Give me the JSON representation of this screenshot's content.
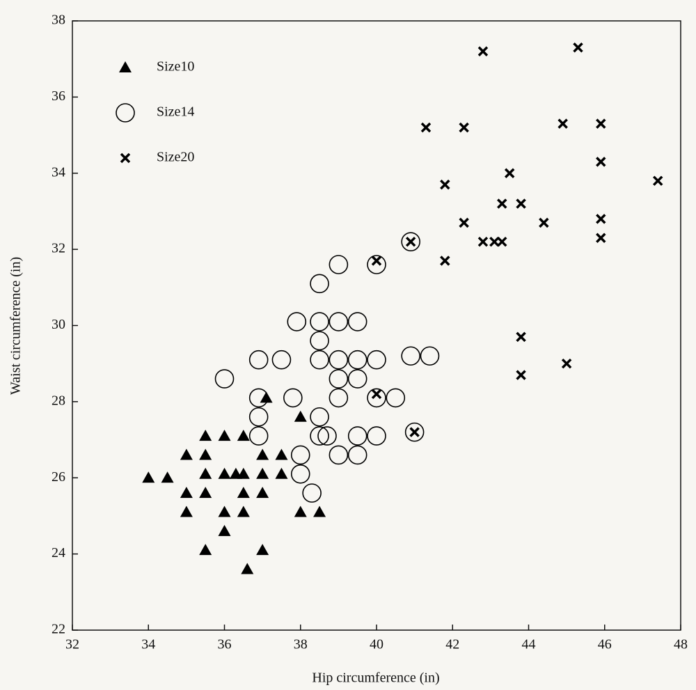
{
  "chart_data": {
    "type": "scatter",
    "xlabel": "Hip circumference (in)",
    "ylabel": "Waist circumference (in)",
    "xlim": [
      32,
      48
    ],
    "ylim": [
      22,
      38
    ],
    "xticks": [
      32,
      34,
      36,
      38,
      40,
      42,
      44,
      46,
      48
    ],
    "yticks": [
      22,
      24,
      26,
      28,
      30,
      32,
      34,
      36,
      38
    ],
    "legend": "upper left",
    "series": [
      {
        "name": "Size10",
        "color": "#000000",
        "marker": "triangle",
        "x": [
          34,
          34.5,
          35,
          35,
          35,
          35.5,
          35.5,
          35.5,
          35.5,
          35.5,
          36,
          36,
          36,
          36,
          36.3,
          36.5,
          36.5,
          36.5,
          36.5,
          36.6,
          37,
          37,
          37,
          37,
          37.1,
          37.5,
          37.5,
          38,
          38,
          38.5
        ],
        "y": [
          26,
          26,
          26.6,
          25.6,
          25.1,
          27.1,
          26.6,
          26.1,
          25.6,
          24.1,
          27.1,
          26.1,
          25.1,
          24.6,
          26.1,
          26.1,
          27.1,
          25.6,
          25.1,
          23.6,
          26.6,
          26.1,
          25.6,
          24.1,
          28.1,
          26.6,
          26.1,
          27.6,
          25.1,
          25.1
        ]
      },
      {
        "name": "Size14",
        "color": "#000000",
        "marker": "circle",
        "x": [
          36,
          36.9,
          37.5,
          36.9,
          36.9,
          36.9,
          37.8,
          37.9,
          38.5,
          39,
          39.5,
          38.5,
          38.5,
          39,
          39.5,
          40,
          39,
          39.5,
          39,
          40,
          40.5,
          38.5,
          39,
          40,
          40.9,
          40.9,
          41.4,
          38,
          38,
          38.3,
          38.5,
          38.5,
          38.7,
          39,
          39.5,
          39.5,
          40,
          41
        ],
        "y": [
          28.6,
          29.1,
          29.1,
          28.1,
          27.6,
          27.1,
          28.1,
          30.1,
          30.1,
          30.1,
          30.1,
          29.6,
          29.1,
          29.1,
          29.1,
          29.1,
          28.6,
          28.6,
          28.1,
          28.1,
          28.1,
          31.1,
          31.6,
          31.6,
          32.2,
          29.2,
          29.2,
          26.6,
          26.1,
          25.6,
          27.6,
          27.1,
          27.1,
          26.6,
          26.6,
          27.1,
          27.1,
          27.2
        ]
      },
      {
        "name": "Size20",
        "color": "#000000",
        "marker": "x",
        "x": [
          42.8,
          45.3,
          41.3,
          42.3,
          44.9,
          45.9,
          45.9,
          43.5,
          41.8,
          47.4,
          43.3,
          43.8,
          42.3,
          44.4,
          45.9,
          45.9,
          42.8,
          43.1,
          43.3,
          41.8,
          40,
          40.9,
          43.8,
          43.8,
          45,
          40,
          41
        ],
        "y": [
          37.2,
          37.3,
          35.2,
          35.2,
          35.3,
          35.3,
          34.3,
          34,
          33.7,
          33.8,
          33.2,
          33.2,
          32.7,
          32.7,
          32.8,
          32.3,
          32.2,
          32.2,
          32.2,
          31.7,
          31.7,
          32.2,
          29.7,
          28.7,
          29,
          28.2,
          27.2
        ]
      }
    ]
  }
}
